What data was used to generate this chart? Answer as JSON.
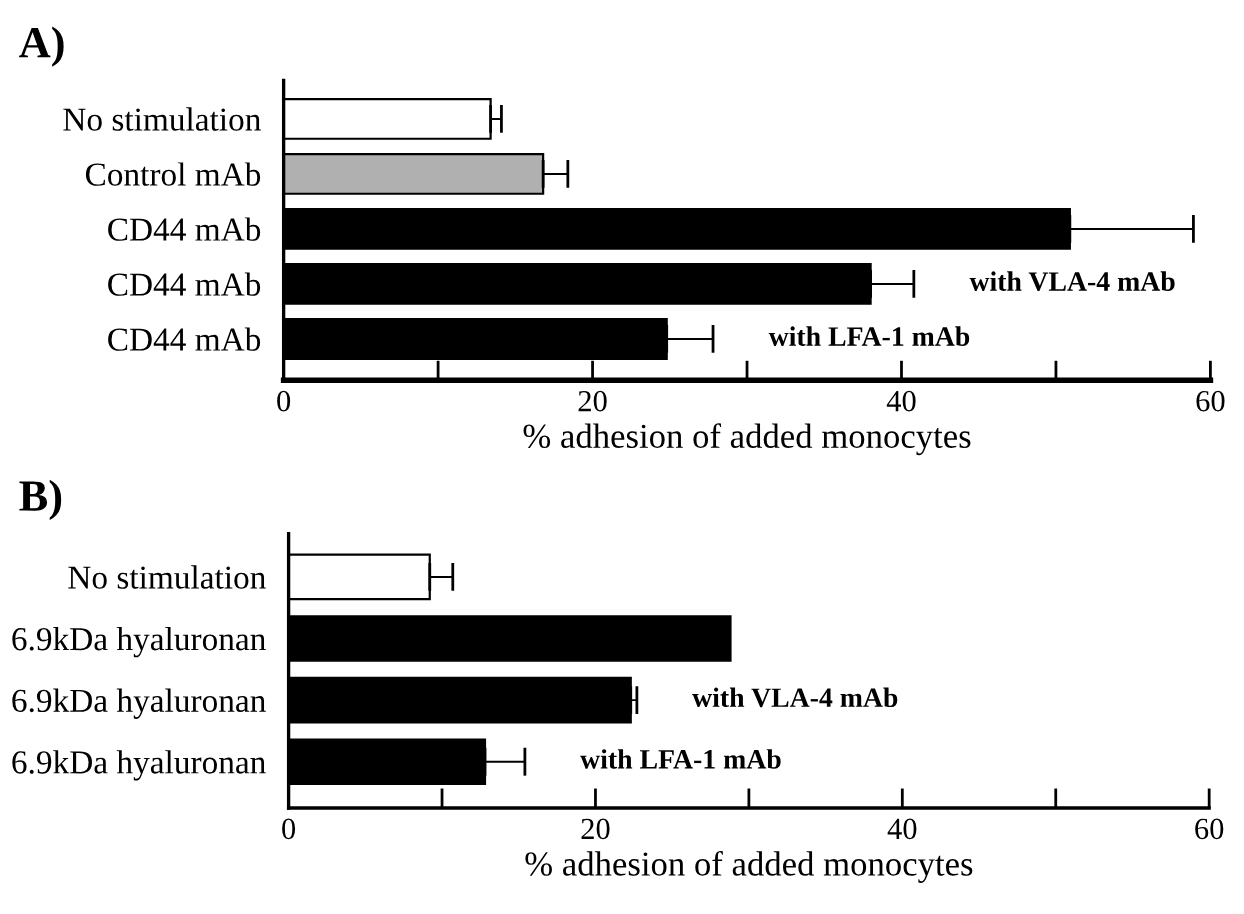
{
  "chart_data": [
    {
      "type": "bar",
      "title": "A)",
      "orientation": "horizontal",
      "categories": [
        "No stimulation",
        "Control mAb",
        "CD44 mAb",
        "CD44 mAb",
        "CD44 mAb"
      ],
      "values": [
        13.4,
        16.8,
        50.9,
        38.0,
        24.8
      ],
      "errors": [
        0.7,
        1.6,
        8.0,
        2.8,
        3.0
      ],
      "colors": [
        "#ffffff",
        "#b0b0b0",
        "#000000",
        "#000000",
        "#000000"
      ],
      "xlim": [
        0,
        60
      ],
      "xticks": [
        0,
        {
          "value": 10,
          "label": null
        },
        20,
        {
          "value": 30,
          "label": null
        },
        40,
        {
          "value": 50,
          "label": null
        },
        60
      ],
      "xlabel": "% adhesion of added monocytes",
      "grid": false,
      "legend": false,
      "annotations": [
        "with VLA-4 mAb",
        "with LFA-1 mAb"
      ]
    },
    {
      "type": "bar",
      "title": "B)",
      "orientation": "horizontal",
      "categories": [
        "No stimulation",
        "6.9kDa hyaluronan",
        "6.9kDa hyaluronan",
        "6.9kDa hyaluronan"
      ],
      "values": [
        9.2,
        28.8,
        22.3,
        12.8
      ],
      "errors": [
        1.5,
        null,
        0.4,
        2.6
      ],
      "colors": [
        "#ffffff",
        "#000000",
        "#000000",
        "#000000"
      ],
      "xlim": [
        0,
        60
      ],
      "xticks": [
        0,
        {
          "value": 10,
          "label": null
        },
        20,
        {
          "value": 30,
          "label": null
        },
        40,
        {
          "value": 50,
          "label": null
        },
        60
      ],
      "xlabel": "% adhesion of added monocytes",
      "grid": false,
      "legend": false,
      "annotations": [
        "with VLA-4 mAb",
        "with LFA-1 mAb"
      ]
    }
  ]
}
